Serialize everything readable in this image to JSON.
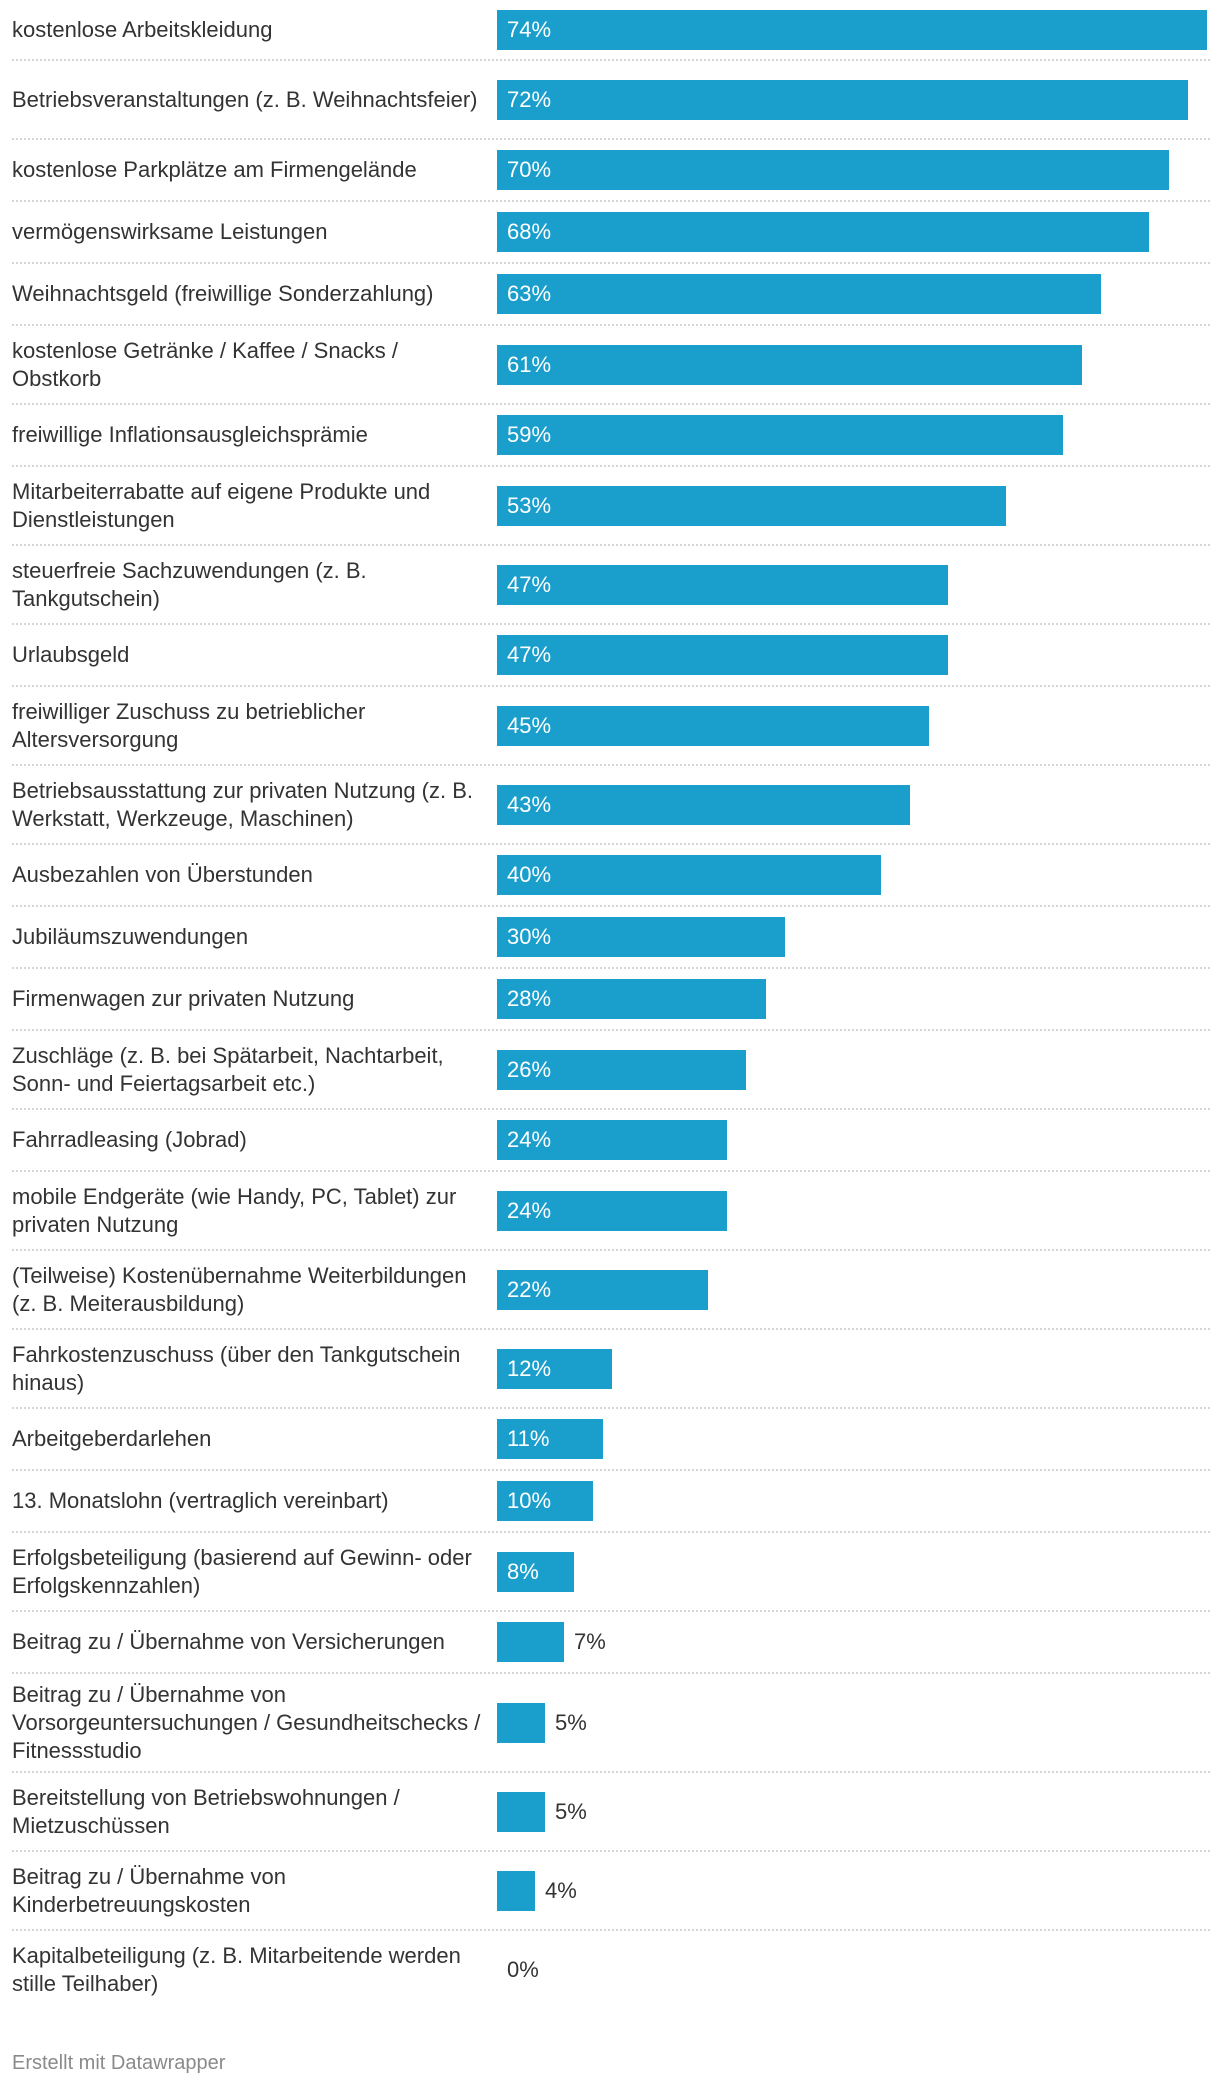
{
  "chart_data": {
    "type": "bar",
    "orientation": "horizontal",
    "unit": "%",
    "xlim": [
      0,
      74
    ],
    "bar_color": "#1a9fcd",
    "categories": [
      "kostenlose Arbeitskleidung",
      "Betriebsveranstaltungen (z. B. Weihnachtsfeier)",
      "kostenlose Parkplätze am Firmengelände",
      "vermögenswirksame Leistungen",
      "Weihnachtsgeld (freiwillige Sonderzahlung)",
      "kostenlose Getränke / Kaffee / Snacks / Obstkorb",
      "freiwillige Inflationsausgleichsprämie",
      "Mitarbeiterrabatte auf eigene Produkte und Dienstleistungen",
      "steuerfreie Sachzuwendungen (z. B. Tankgutschein)",
      "Urlaubsgeld",
      "freiwilliger Zuschuss zu betrieblicher Altersversorgung",
      "Betriebsausstattung zur privaten Nutzung (z. B. Werkstatt, Werkzeuge, Maschinen)",
      "Ausbezahlen von Überstunden",
      "Jubiläumszuwendungen",
      "Firmenwagen zur privaten Nutzung",
      "Zuschläge (z. B. bei Spätarbeit, Nachtarbeit, Sonn- und Feiertagsarbeit etc.)",
      "Fahrradleasing (Jobrad)",
      "mobile Endgeräte (wie Handy, PC, Tablet) zur privaten Nutzung",
      "(Teilweise) Kostenübernahme Weiterbildungen (z. B. Meiterausbildung)",
      "Fahrkostenzuschuss (über den Tankgutschein hinaus)",
      "Arbeitgeberdarlehen",
      "13. Monatslohn (vertraglich vereinbart)",
      "Erfolgsbeteiligung (basierend auf Gewinn- oder Erfolgskennzahlen)",
      "Beitrag zu / Übernahme von Versicherungen",
      "Beitrag zu / Übernahme von Vorsorgeuntersuchungen / Gesundheitschecks / Fitnessstudio",
      "Bereitstellung von Betriebswohnungen / Mietzuschüssen",
      "Beitrag zu / Übernahme von Kinderbetreuungskosten",
      "Kapitalbeteiligung (z. B. Mitarbeitende werden stille Teilhaber)"
    ],
    "values": [
      74,
      72,
      70,
      68,
      63,
      61,
      59,
      53,
      47,
      47,
      45,
      43,
      40,
      30,
      28,
      26,
      24,
      24,
      22,
      12,
      11,
      10,
      8,
      7,
      5,
      5,
      4,
      0
    ],
    "value_labels": [
      "74%",
      "72%",
      "70%",
      "68%",
      "63%",
      "61%",
      "59%",
      "53%",
      "47%",
      "47%",
      "45%",
      "43%",
      "40%",
      "30%",
      "28%",
      "26%",
      "24%",
      "24%",
      "22%",
      "12%",
      "11%",
      "10%",
      "8%",
      "7%",
      "5%",
      "5%",
      "4%",
      "0%"
    ],
    "title": "",
    "xlabel": "",
    "ylabel": ""
  },
  "footer": {
    "credit": "Erstellt mit Datawrapper"
  }
}
